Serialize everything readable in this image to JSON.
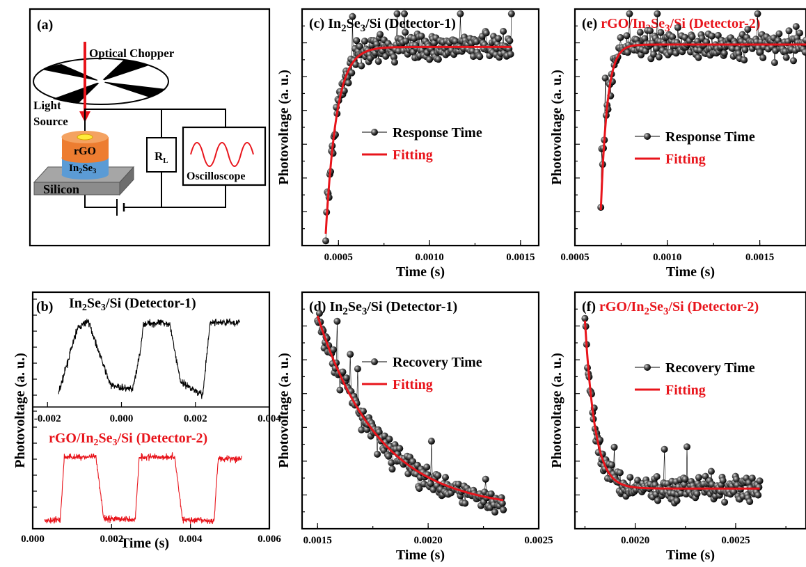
{
  "schematic": {
    "label": "(a)",
    "optical_chopper": "Optical Chopper",
    "light": "Light",
    "source": "Source",
    "rgo": "rGO",
    "in2se3_base": "In",
    "in2se3_sub1": "2",
    "in2se3_mid": "Se",
    "in2se3_sub2": "3",
    "silicon": "Silicon",
    "rl_base": "R",
    "rl_sub": "L",
    "oscilloscope": "Oscilloscope"
  },
  "panel_b": {
    "label": "(b)",
    "top_title": "In2Se3/Si (Detector-1)",
    "bottom_title": "rGO/In2Se3/Si (Detector-2)",
    "ylabel": "Photovoltage (a. u.)",
    "xlabel": "Time (s)",
    "top_xticks": [
      "-0.002",
      "0.000",
      "0.002",
      "0.004"
    ],
    "bottom_xticks": [
      "0.000",
      "0.002",
      "0.004",
      "0.006"
    ]
  },
  "panel_c": {
    "label": "(c)",
    "title": "In2Se3/Si (Detector-1)",
    "xlabel": "Time (s)",
    "ylabel": "Photovoltage (a. u.)",
    "xticks": [
      "0.0005",
      "0.0010",
      "0.0015"
    ],
    "legend": [
      "Response Time",
      "Fitting"
    ]
  },
  "panel_d": {
    "label": "(d)",
    "title": "In2Se3/Si (Detector-1)",
    "xlabel": "Time (s)",
    "ylabel": "Photovoltage (a. u.)",
    "xticks": [
      "0.0015",
      "0.0020",
      "0.0025"
    ],
    "legend": [
      "Recovery Time",
      "Fitting"
    ]
  },
  "panel_e": {
    "label": "(e)",
    "title": "rGO/In2Se3/Si (Detector-2)",
    "xlabel": "Time (s)",
    "ylabel": "Photovoltage (a. u.)",
    "xticks": [
      "0.0005",
      "0.0010",
      "0.0015"
    ],
    "legend": [
      "Response Time",
      "Fitting"
    ]
  },
  "panel_f": {
    "label": "(f)",
    "title": "rGO/In2Se3/Si (Detector-2)",
    "xlabel": "Time (s)",
    "ylabel": "Photovoltage (a. u.)",
    "xticks": [
      "0.0020",
      "0.0025"
    ],
    "legend": [
      "Recovery Time",
      "Fitting"
    ]
  },
  "colors": {
    "detector1": "#000000",
    "detector2": "#e8141b",
    "fit": "#e8141b",
    "points": "#1a1a1a"
  },
  "chart_data": [
    {
      "type": "line",
      "panel": "b-top",
      "title": "In2Se3/Si (Detector-1)",
      "xlabel": "",
      "ylabel": "Photovoltage (a. u.)",
      "xlim": [
        -0.0024,
        0.004
      ],
      "series": [
        {
          "name": "",
          "color": "#000000",
          "x": [
            -0.0017,
            -0.0012,
            -0.0009,
            -0.0003,
            0.0003,
            0.0005,
            0.0006,
            0.0013,
            0.0016,
            0.0022,
            0.0023,
            0.0024,
            0.0032
          ],
          "y": [
            0.08,
            0.85,
            0.95,
            0.18,
            0.12,
            0.55,
            0.92,
            0.92,
            0.22,
            0.06,
            0.5,
            0.93,
            0.93
          ]
        }
      ]
    },
    {
      "type": "line",
      "panel": "b-bottom",
      "title": "rGO/In2Se3/Si (Detector-2)",
      "xlabel": "Time (s)",
      "ylabel": "Photovoltage (a. u.)",
      "xlim": [
        0,
        0.006
      ],
      "series": [
        {
          "name": "",
          "color": "#e8141b",
          "x": [
            0.0003,
            0.0007,
            0.0008,
            0.0016,
            0.0018,
            0.0026,
            0.0027,
            0.0036,
            0.0038,
            0.0046,
            0.0047,
            0.0053
          ],
          "y": [
            0.08,
            0.1,
            0.92,
            0.92,
            0.12,
            0.1,
            0.92,
            0.92,
            0.1,
            0.08,
            0.9,
            0.9
          ]
        }
      ]
    },
    {
      "type": "scatter",
      "panel": "c",
      "title": "In2Se3/Si (Detector-1)",
      "xlabel": "Time (s)",
      "ylabel": "Photovoltage (a. u.)",
      "xlim": [
        0.0003,
        0.0016
      ],
      "ylim": [
        0,
        1
      ],
      "fit": {
        "model": "rise",
        "x0": 0.00043,
        "x1": 0.00145,
        "tau": 6e-05,
        "y0": 0.05,
        "ymax": 0.84
      },
      "series": [
        {
          "name": "Response Time",
          "start": 0.00043,
          "end": 0.00145,
          "count": 230,
          "noise": 0.05
        },
        {
          "name": "Fitting"
        }
      ]
    },
    {
      "type": "scatter",
      "panel": "d",
      "title": "In2Se3/Si (Detector-1)",
      "xlabel": "Time (s)",
      "ylabel": "Photovoltage (a. u.)",
      "xlim": [
        0.00143,
        0.0025
      ],
      "ylim": [
        0,
        1
      ],
      "fit": {
        "model": "decay",
        "x0": 0.0015,
        "x1": 0.00234,
        "tau": 0.00028,
        "y0": 0.9,
        "yinf": 0.08
      },
      "series": [
        {
          "name": "Recovery Time",
          "start": 0.0015,
          "end": 0.00234,
          "count": 200,
          "noise": 0.045
        },
        {
          "name": "Fitting"
        }
      ]
    },
    {
      "type": "scatter",
      "panel": "e",
      "title": "rGO/In2Se3/Si (Detector-2)",
      "xlabel": "Time (s)",
      "ylabel": "Photovoltage (a. u.)",
      "xlim": [
        0.0005,
        0.00175
      ],
      "ylim": [
        0,
        1
      ],
      "fit": {
        "model": "rise",
        "x0": 0.00064,
        "x1": 0.00175,
        "tau": 3.5e-05,
        "y0": 0.15,
        "ymax": 0.85
      },
      "series": [
        {
          "name": "Response Time",
          "start": 0.00064,
          "end": 0.00175,
          "count": 230,
          "noise": 0.05
        },
        {
          "name": "Fitting"
        }
      ]
    },
    {
      "type": "scatter",
      "panel": "f",
      "title": "rGO/In2Se3/Si (Detector-2)",
      "xlabel": "Time (s)",
      "ylabel": "Photovoltage (a. u.)",
      "xlim": [
        0.0017,
        0.00285
      ],
      "ylim": [
        0,
        1
      ],
      "fit": {
        "model": "decay",
        "x0": 0.00175,
        "x1": 0.00262,
        "tau": 5e-05,
        "y0": 0.88,
        "yinf": 0.17
      },
      "series": [
        {
          "name": "Recovery Time",
          "start": 0.00175,
          "end": 0.00262,
          "count": 210,
          "noise": 0.045
        },
        {
          "name": "Fitting"
        }
      ]
    }
  ]
}
